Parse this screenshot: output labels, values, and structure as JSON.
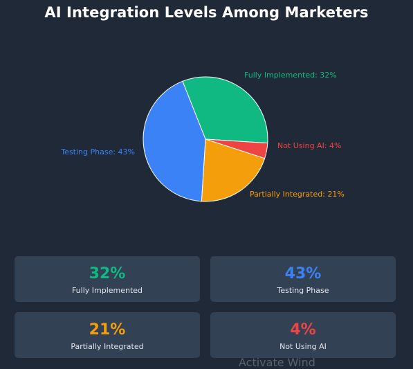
{
  "title": "AI Integration Levels Among Marketers",
  "chart_data": {
    "type": "pie",
    "title": "AI Integration Levels Among Marketers",
    "slices": [
      {
        "label": "Fully Implemented",
        "value": 32,
        "display": "Fully Implemented: 32%",
        "color": "#10b981"
      },
      {
        "label": "Not Using AI",
        "value": 4,
        "display": "Not Using AI: 4%",
        "color": "#ef4444"
      },
      {
        "label": "Partially Integrated",
        "value": 21,
        "display": "Partially Integrated: 21%",
        "color": "#f59e0b"
      },
      {
        "label": "Testing Phase",
        "value": 43,
        "display": "Testing Phase: 43%",
        "color": "#3b82f6"
      }
    ]
  },
  "cards": [
    {
      "value": "32%",
      "label": "Fully Implemented",
      "color": "#10b981"
    },
    {
      "value": "43%",
      "label": "Testing Phase",
      "color": "#3b82f6"
    },
    {
      "value": "21%",
      "label": "Partially Integrated",
      "color": "#f59e0b"
    },
    {
      "value": "4%",
      "label": "Not Using AI",
      "color": "#ef4444"
    }
  ],
  "watermark": "Activate Wind"
}
